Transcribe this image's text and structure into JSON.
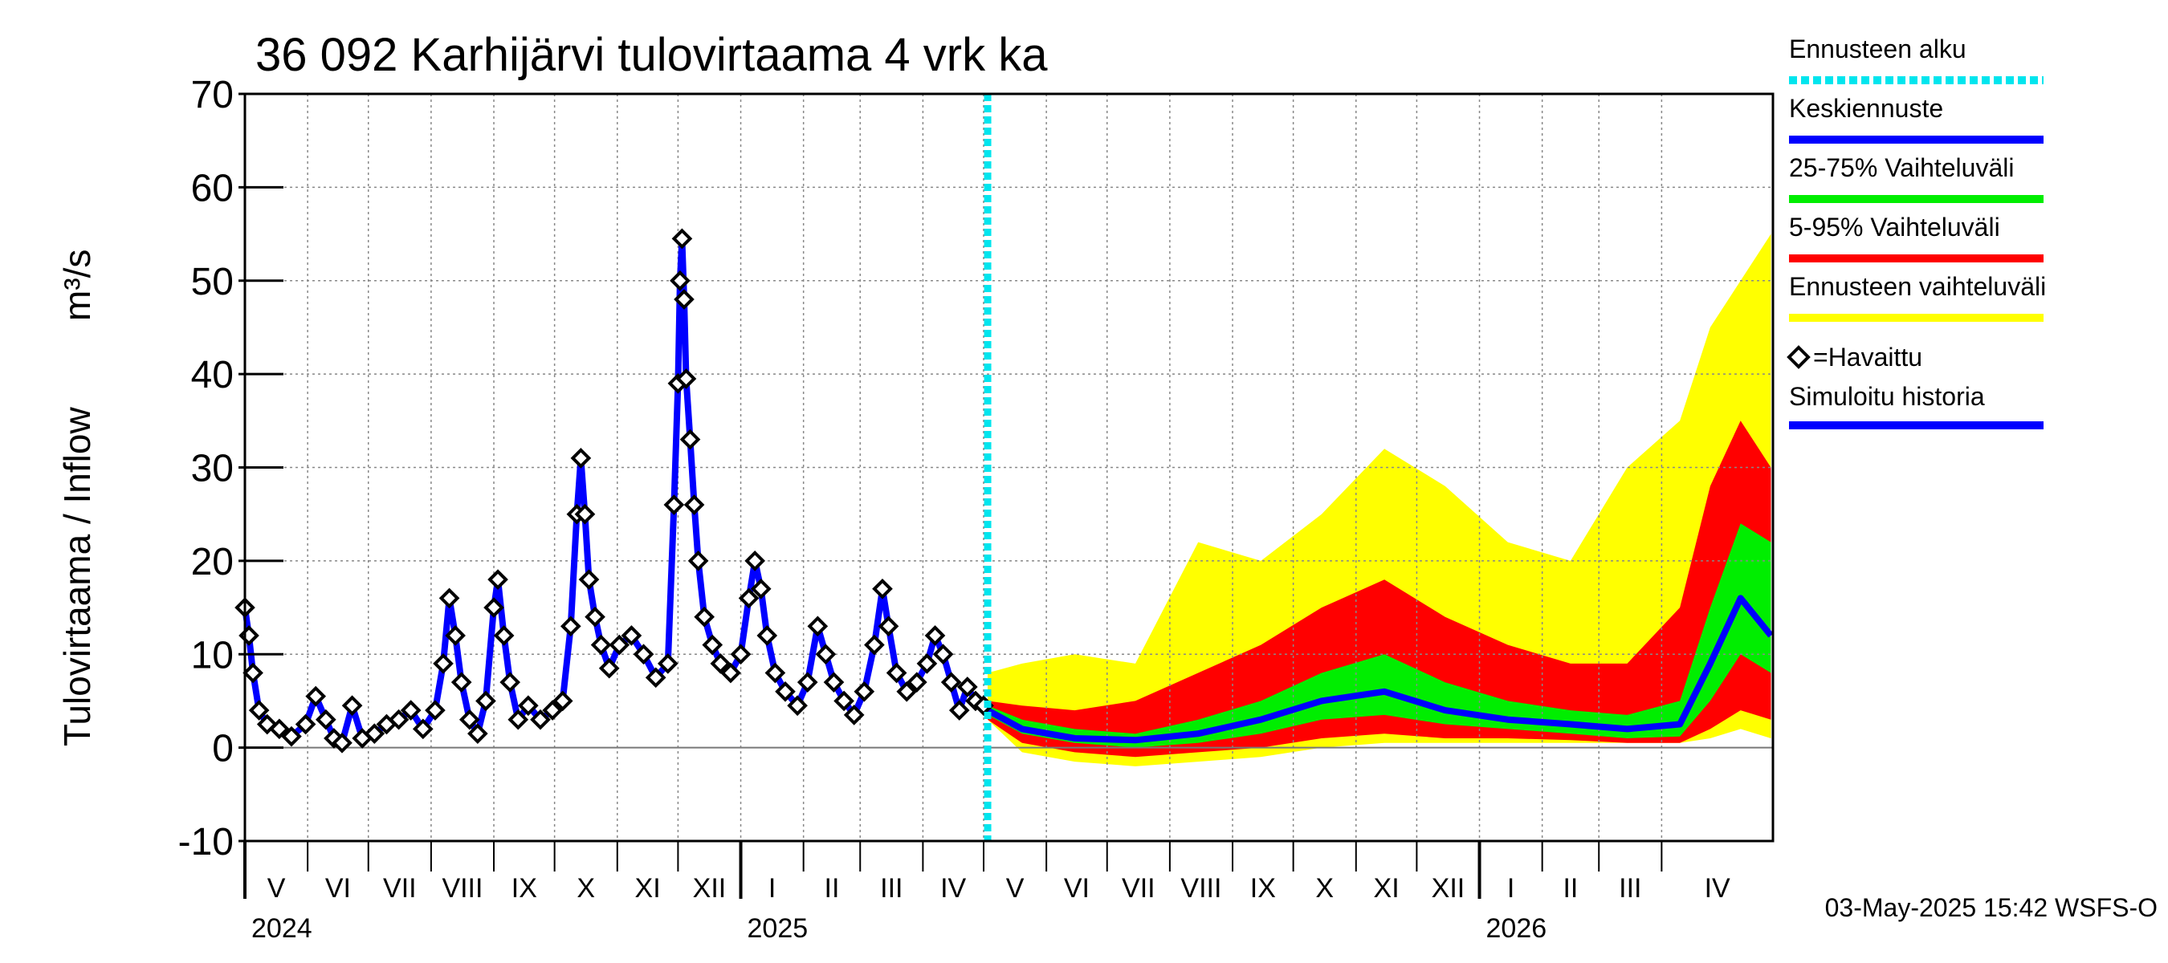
{
  "chart_data": {
    "type": "area",
    "title": "36 092 Karhijärvi tulovirtaama 4 vrk ka",
    "ylabel_fi": "Tulovirtaama / Inflow",
    "ylabel_unit": "m³/s",
    "ylim": [
      -10,
      70
    ],
    "yticks": [
      "-10",
      "0",
      "10",
      "20",
      "30",
      "40",
      "50",
      "60",
      "70"
    ],
    "xlim": [
      "2024-05-01",
      "2026-05-26"
    ],
    "grid": true,
    "forecast_start": "2025-05-03",
    "months": [
      {
        "label": "V",
        "start": "2024-05-01"
      },
      {
        "label": "VI",
        "start": "2024-06-01"
      },
      {
        "label": "VII",
        "start": "2024-07-01"
      },
      {
        "label": "VIII",
        "start": "2024-08-01"
      },
      {
        "label": "IX",
        "start": "2024-09-01"
      },
      {
        "label": "X",
        "start": "2024-10-01"
      },
      {
        "label": "XI",
        "start": "2024-11-01"
      },
      {
        "label": "XII",
        "start": "2024-12-01"
      },
      {
        "label": "I",
        "start": "2025-01-01"
      },
      {
        "label": "II",
        "start": "2025-02-01"
      },
      {
        "label": "III",
        "start": "2025-03-01"
      },
      {
        "label": "IV",
        "start": "2025-04-01"
      },
      {
        "label": "V",
        "start": "2025-05-01"
      },
      {
        "label": "VI",
        "start": "2025-06-01"
      },
      {
        "label": "VII",
        "start": "2025-07-01"
      },
      {
        "label": "VIII",
        "start": "2025-08-01"
      },
      {
        "label": "IX",
        "start": "2025-09-01"
      },
      {
        "label": "X",
        "start": "2025-10-01"
      },
      {
        "label": "XI",
        "start": "2025-11-01"
      },
      {
        "label": "XII",
        "start": "2025-12-01"
      },
      {
        "label": "I",
        "start": "2026-01-01"
      },
      {
        "label": "II",
        "start": "2026-02-01"
      },
      {
        "label": "III",
        "start": "2026-03-01"
      },
      {
        "label": "IV",
        "start": "2026-04-01"
      }
    ],
    "years": [
      {
        "label": "2024",
        "start": "2024-05-01"
      },
      {
        "label": "2025",
        "start": "2025-01-01"
      },
      {
        "label": "2026",
        "start": "2026-01-01"
      }
    ],
    "legend": [
      {
        "label": "Ennusteen alku",
        "color": "#00e5ee",
        "style": "dotted"
      },
      {
        "label": "Keskiennuste",
        "color": "#0000ff",
        "style": "line"
      },
      {
        "label": "25-75% Vaihteluväli",
        "color": "#00ee00",
        "style": "line"
      },
      {
        "label": "5-95% Vaihteluväli",
        "color": "#ff0000",
        "style": "line"
      },
      {
        "label": "Ennusteen vaihteluväli",
        "color": "#ffff00",
        "style": "line"
      },
      {
        "label": "=Havaittu",
        "color": "#000000",
        "style": "diamond"
      },
      {
        "label": "Simuloitu historia",
        "color": "#0000ff",
        "style": "line"
      }
    ],
    "observed": [
      [
        "2024-05-01",
        15
      ],
      [
        "2024-05-03",
        12
      ],
      [
        "2024-05-05",
        8
      ],
      [
        "2024-05-08",
        4
      ],
      [
        "2024-05-12",
        2.5
      ],
      [
        "2024-05-18",
        2
      ],
      [
        "2024-05-24",
        1.2
      ],
      [
        "2024-05-31",
        2.5
      ],
      [
        "2024-06-05",
        5.5
      ],
      [
        "2024-06-10",
        3
      ],
      [
        "2024-06-14",
        1
      ],
      [
        "2024-06-18",
        0.5
      ],
      [
        "2024-06-23",
        4.5
      ],
      [
        "2024-06-28",
        1
      ],
      [
        "2024-07-04",
        1.5
      ],
      [
        "2024-07-10",
        2.5
      ],
      [
        "2024-07-16",
        3
      ],
      [
        "2024-07-22",
        4
      ],
      [
        "2024-07-28",
        2
      ],
      [
        "2024-08-03",
        4
      ],
      [
        "2024-08-07",
        9
      ],
      [
        "2024-08-10",
        16
      ],
      [
        "2024-08-13",
        12
      ],
      [
        "2024-08-16",
        7
      ],
      [
        "2024-08-20",
        3
      ],
      [
        "2024-08-24",
        1.5
      ],
      [
        "2024-08-28",
        5
      ],
      [
        "2024-09-01",
        15
      ],
      [
        "2024-09-03",
        18
      ],
      [
        "2024-09-06",
        12
      ],
      [
        "2024-09-09",
        7
      ],
      [
        "2024-09-13",
        3
      ],
      [
        "2024-09-18",
        4.5
      ],
      [
        "2024-09-24",
        3
      ],
      [
        "2024-09-30",
        4
      ],
      [
        "2024-10-05",
        5
      ],
      [
        "2024-10-09",
        13
      ],
      [
        "2024-10-12",
        25
      ],
      [
        "2024-10-14",
        31
      ],
      [
        "2024-10-16",
        25
      ],
      [
        "2024-10-18",
        18
      ],
      [
        "2024-10-21",
        14
      ],
      [
        "2024-10-24",
        11
      ],
      [
        "2024-10-28",
        8.5
      ],
      [
        "2024-11-02",
        11
      ],
      [
        "2024-11-08",
        12
      ],
      [
        "2024-11-14",
        10
      ],
      [
        "2024-11-20",
        7.5
      ],
      [
        "2024-11-26",
        9
      ],
      [
        "2024-11-29",
        26
      ],
      [
        "2024-12-01",
        39
      ],
      [
        "2024-12-02",
        50
      ],
      [
        "2024-12-03",
        54.5
      ],
      [
        "2024-12-04",
        48
      ],
      [
        "2024-12-05",
        39.5
      ],
      [
        "2024-12-07",
        33
      ],
      [
        "2024-12-09",
        26
      ],
      [
        "2024-12-11",
        20
      ],
      [
        "2024-12-14",
        14
      ],
      [
        "2024-12-18",
        11
      ],
      [
        "2024-12-22",
        9
      ],
      [
        "2024-12-27",
        8
      ],
      [
        "2025-01-01",
        10
      ],
      [
        "2025-01-05",
        16
      ],
      [
        "2025-01-08",
        20
      ],
      [
        "2025-01-11",
        17
      ],
      [
        "2025-01-14",
        12
      ],
      [
        "2025-01-18",
        8
      ],
      [
        "2025-01-23",
        6
      ],
      [
        "2025-01-29",
        4.5
      ],
      [
        "2025-02-03",
        7
      ],
      [
        "2025-02-08",
        13
      ],
      [
        "2025-02-12",
        10
      ],
      [
        "2025-02-16",
        7
      ],
      [
        "2025-02-21",
        5
      ],
      [
        "2025-02-26",
        3.5
      ],
      [
        "2025-03-03",
        6
      ],
      [
        "2025-03-08",
        11
      ],
      [
        "2025-03-12",
        17
      ],
      [
        "2025-03-15",
        13
      ],
      [
        "2025-03-19",
        8
      ],
      [
        "2025-03-24",
        6
      ],
      [
        "2025-03-29",
        7
      ],
      [
        "2025-04-03",
        9
      ],
      [
        "2025-04-07",
        12
      ],
      [
        "2025-04-11",
        10
      ],
      [
        "2025-04-15",
        7
      ],
      [
        "2025-04-19",
        4
      ],
      [
        "2025-04-23",
        6.5
      ],
      [
        "2025-04-27",
        5
      ],
      [
        "2025-05-01",
        4.5
      ]
    ],
    "forecast": [
      {
        "date": "2025-05-03",
        "p0": 3,
        "p5": 3,
        "p25": 3.5,
        "median": 4,
        "p75": 4.5,
        "p95": 5,
        "p100": 8
      },
      {
        "date": "2025-05-20",
        "p0": -0.5,
        "p5": 0.5,
        "p25": 1.5,
        "median": 2,
        "p75": 3,
        "p95": 4.5,
        "p100": 9
      },
      {
        "date": "2025-06-15",
        "p0": -1.5,
        "p5": -0.5,
        "p25": 0.5,
        "median": 1,
        "p75": 2,
        "p95": 4,
        "p100": 10
      },
      {
        "date": "2025-07-15",
        "p0": -2,
        "p5": -1,
        "p25": 0,
        "median": 0.8,
        "p75": 1.5,
        "p95": 5,
        "p100": 9
      },
      {
        "date": "2025-08-15",
        "p0": -1.5,
        "p5": -0.5,
        "p25": 0.5,
        "median": 1.5,
        "p75": 3,
        "p95": 8,
        "p100": 22
      },
      {
        "date": "2025-09-15",
        "p0": -1,
        "p5": 0,
        "p25": 1.5,
        "median": 3,
        "p75": 5,
        "p95": 11,
        "p100": 20
      },
      {
        "date": "2025-10-15",
        "p0": 0,
        "p5": 1,
        "p25": 3,
        "median": 5,
        "p75": 8,
        "p95": 15,
        "p100": 25
      },
      {
        "date": "2025-11-15",
        "p0": 0.5,
        "p5": 1.5,
        "p25": 3.5,
        "median": 6,
        "p75": 10,
        "p95": 18,
        "p100": 32
      },
      {
        "date": "2025-12-15",
        "p0": 0.5,
        "p5": 1,
        "p25": 2.5,
        "median": 4,
        "p75": 7,
        "p95": 14,
        "p100": 28
      },
      {
        "date": "2026-01-15",
        "p0": 0.5,
        "p5": 1,
        "p25": 2,
        "median": 3,
        "p75": 5,
        "p95": 11,
        "p100": 22
      },
      {
        "date": "2026-02-15",
        "p0": 0.5,
        "p5": 0.8,
        "p25": 1.5,
        "median": 2.5,
        "p75": 4,
        "p95": 9,
        "p100": 20
      },
      {
        "date": "2026-03-15",
        "p0": 0.5,
        "p5": 0.5,
        "p25": 1,
        "median": 2,
        "p75": 3.5,
        "p95": 9,
        "p100": 30
      },
      {
        "date": "2026-04-10",
        "p0": 0.5,
        "p5": 0.5,
        "p25": 1.2,
        "median": 2.5,
        "p75": 5,
        "p95": 15,
        "p100": 35
      },
      {
        "date": "2026-04-25",
        "p0": 1,
        "p5": 2,
        "p25": 5,
        "median": 9,
        "p75": 15,
        "p95": 28,
        "p100": 45
      },
      {
        "date": "2026-05-10",
        "p0": 2,
        "p5": 4,
        "p25": 10,
        "median": 16,
        "p75": 24,
        "p95": 35,
        "p100": 50
      },
      {
        "date": "2026-05-25",
        "p0": 1,
        "p5": 3,
        "p25": 8,
        "median": 12,
        "p75": 22,
        "p95": 30,
        "p100": 55
      }
    ]
  },
  "footer": {
    "timestamp": "03-May-2025 15:42 WSFS-O"
  }
}
